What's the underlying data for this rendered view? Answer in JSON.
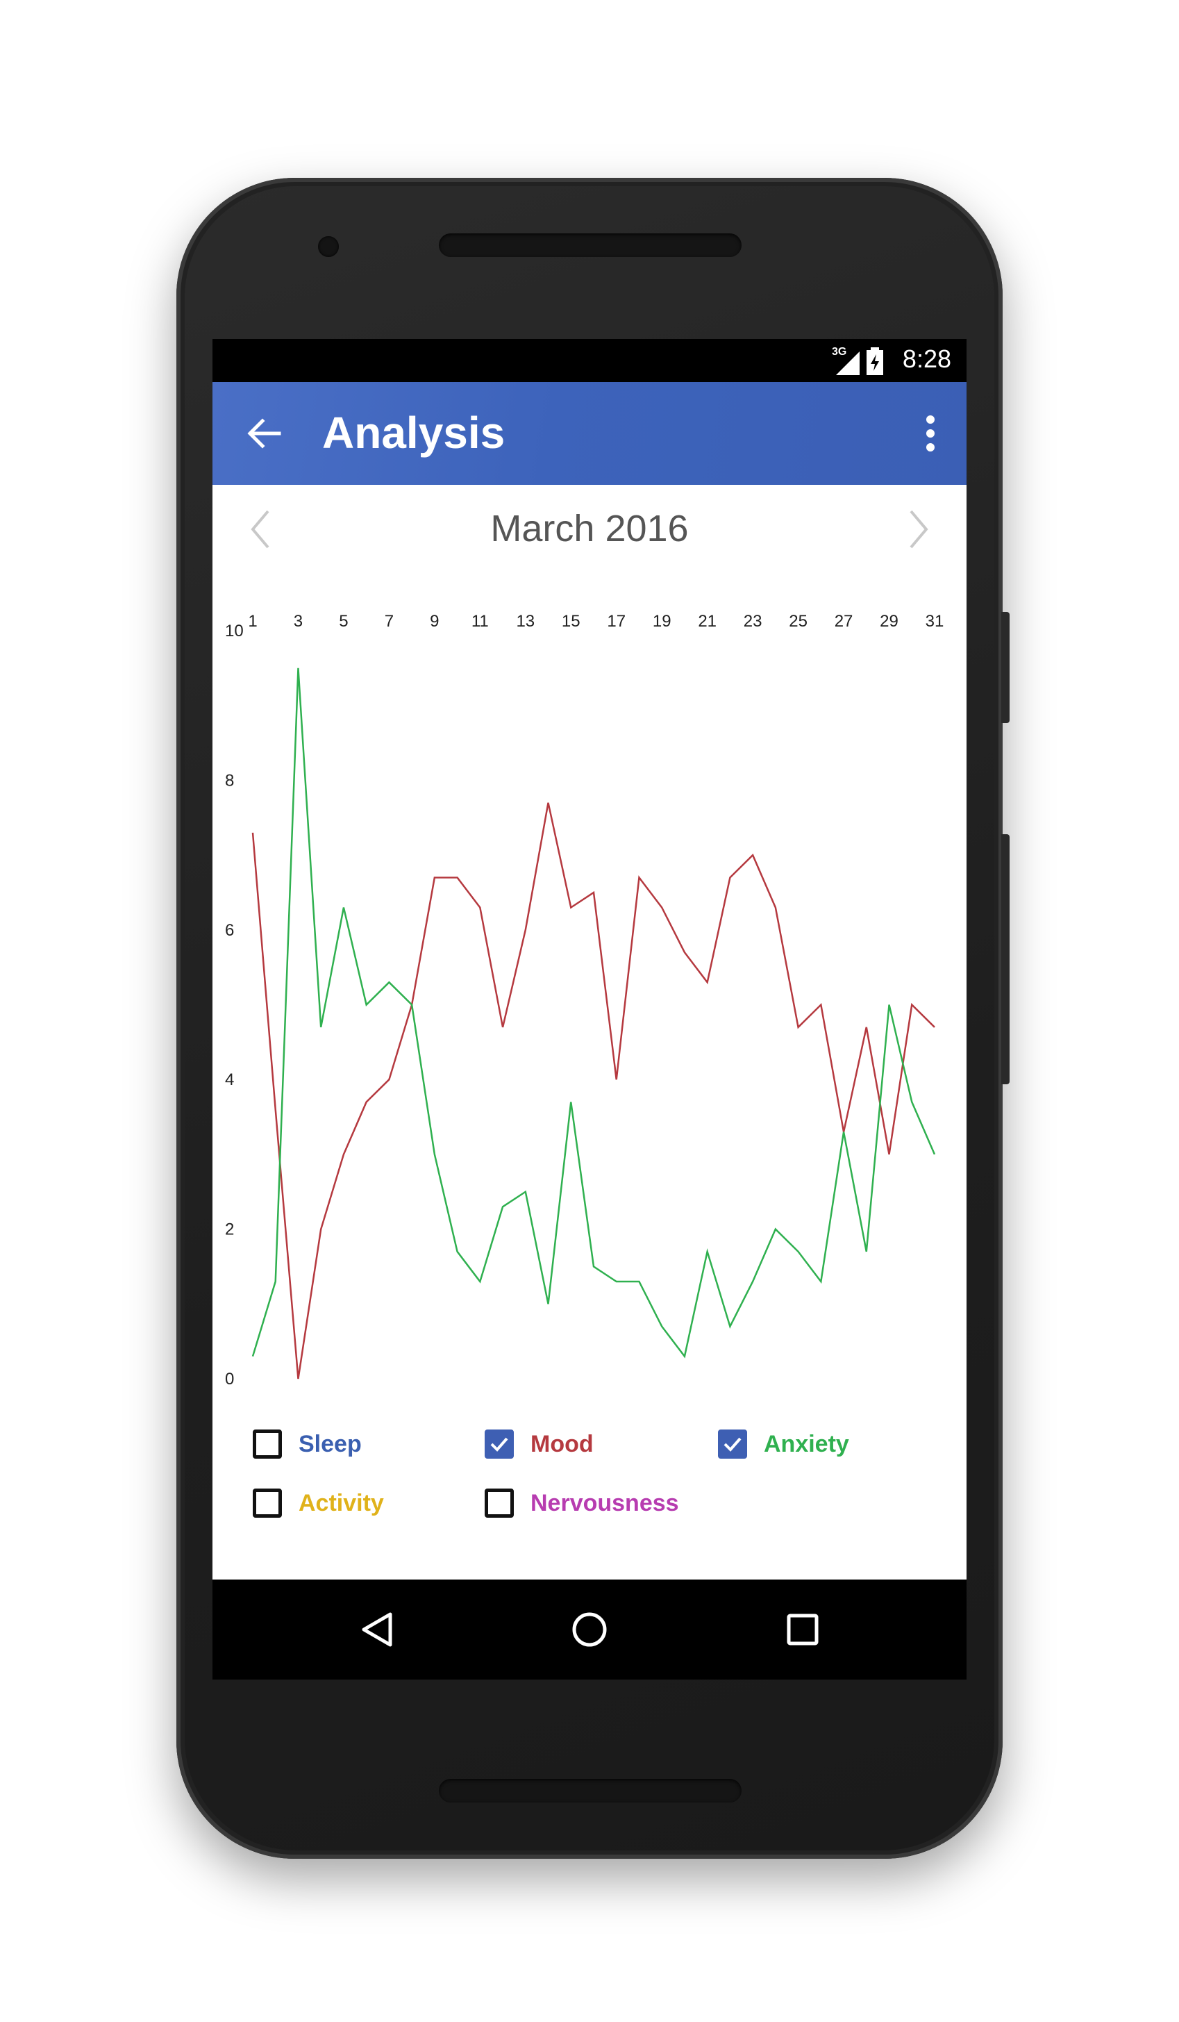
{
  "status_bar": {
    "network": "3G",
    "time": "8:28"
  },
  "app_bar": {
    "title": "Analysis"
  },
  "calendar": {
    "month_label": "March 2016"
  },
  "chart_data": {
    "type": "line",
    "x_ticks": [
      "1",
      "3",
      "5",
      "7",
      "9",
      "11",
      "13",
      "15",
      "17",
      "19",
      "21",
      "23",
      "25",
      "27",
      "29",
      "31"
    ],
    "y_ticks": [
      "0",
      "2",
      "4",
      "6",
      "8",
      "10"
    ],
    "ylim": [
      0,
      10
    ],
    "xlim": [
      1,
      31
    ],
    "x": [
      1,
      2,
      3,
      4,
      5,
      6,
      7,
      8,
      9,
      10,
      11,
      12,
      13,
      14,
      15,
      16,
      17,
      18,
      19,
      20,
      21,
      22,
      23,
      24,
      25,
      26,
      27,
      28,
      29,
      30,
      31
    ],
    "series": [
      {
        "name": "Mood",
        "color": "#b5393f",
        "values": [
          7.3,
          3.6,
          0.0,
          2.0,
          3.0,
          3.7,
          4.0,
          5.0,
          6.7,
          6.7,
          6.3,
          4.7,
          6.0,
          7.7,
          6.3,
          6.5,
          4.0,
          6.7,
          6.3,
          5.7,
          5.3,
          6.7,
          7.0,
          6.3,
          4.7,
          5.0,
          3.3,
          4.7,
          3.0,
          5.0,
          4.7
        ]
      },
      {
        "name": "Anxiety",
        "color": "#2fb04f",
        "values": [
          0.3,
          1.3,
          9.5,
          4.7,
          6.3,
          5.0,
          5.3,
          5.0,
          3.0,
          1.7,
          1.3,
          2.3,
          2.5,
          1.0,
          3.7,
          1.5,
          1.3,
          1.3,
          0.7,
          0.3,
          1.7,
          0.7,
          1.3,
          2.0,
          1.7,
          1.3,
          3.3,
          1.7,
          5.0,
          3.7,
          3.0
        ]
      }
    ],
    "grid": false,
    "legend_position": "bottom"
  },
  "legend": [
    {
      "label": "Sleep",
      "color": "#3a5fb0",
      "checked": false
    },
    {
      "label": "Mood",
      "color": "#b5393f",
      "checked": true
    },
    {
      "label": "Anxiety",
      "color": "#2fb04f",
      "checked": true
    },
    {
      "label": "Activity",
      "color": "#e0b21a",
      "checked": false
    },
    {
      "label": "Nervousness",
      "color": "#b73cb0",
      "checked": false
    }
  ],
  "icons": [
    "back-arrow-icon",
    "more-vert-icon",
    "chevron-left-icon",
    "chevron-right-icon",
    "signal-icon",
    "battery-icon",
    "nav-back-icon",
    "nav-home-icon",
    "nav-recents-icon"
  ]
}
